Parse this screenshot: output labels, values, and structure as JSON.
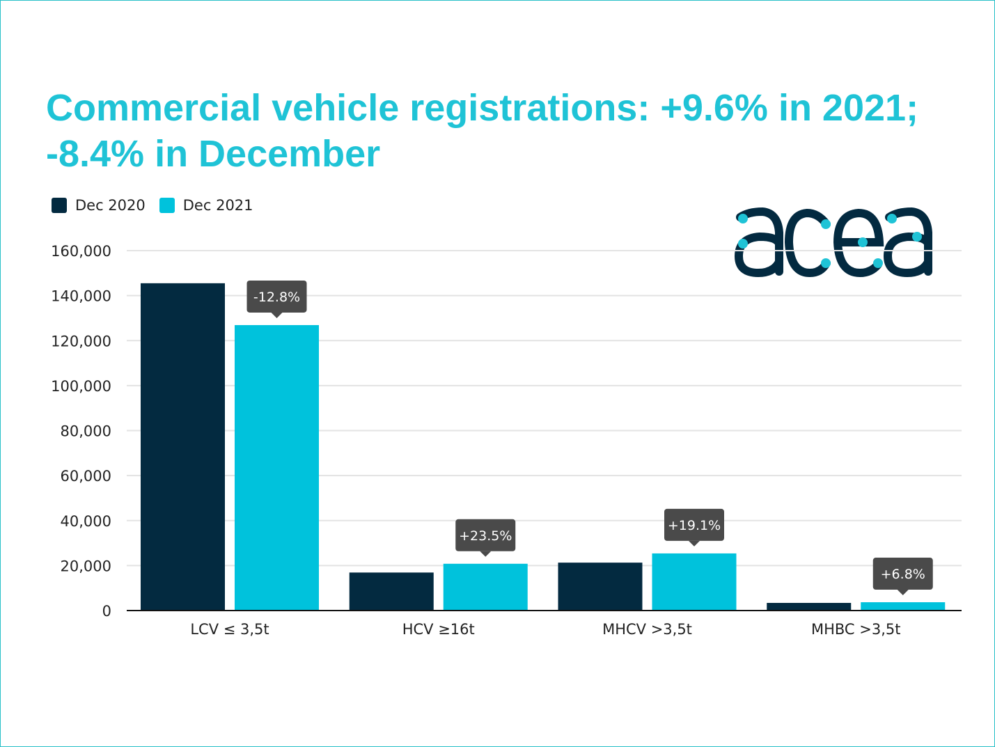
{
  "title": "Commercial vehicle registrations: +9.6% in 2021; -8.4% in December",
  "logo_text": "acea",
  "colors": {
    "accent": "#1fc3d6",
    "dark": "#032a40",
    "light": "#00c2dc",
    "annotation_bg": "#4a4a4a",
    "grid": "#e3e3e3"
  },
  "chart_data": {
    "type": "bar",
    "categories": [
      "LCV ≤ 3,5t",
      "HCV ≥16t",
      "MHCV >3,5t",
      "MHBC >3,5t"
    ],
    "series": [
      {
        "name": "Dec 2020",
        "color": "#032a40",
        "values": [
          145500,
          16900,
          21300,
          3400
        ]
      },
      {
        "name": "Dec 2021",
        "color": "#00c2dc",
        "values": [
          126900,
          20800,
          25400,
          3700
        ]
      }
    ],
    "annotations": [
      "-12.8%",
      "+23.5%",
      "+19.1%",
      "+6.8%"
    ],
    "ylim": [
      0,
      160000
    ],
    "yticks": [
      "0",
      "20,000",
      "40,000",
      "60,000",
      "80,000",
      "100,000",
      "120,000",
      "140,000",
      "160,000"
    ],
    "ytick_values": [
      0,
      20000,
      40000,
      60000,
      80000,
      100000,
      120000,
      140000,
      160000
    ],
    "grid": true,
    "legend_position": "top-left",
    "xlabel": "",
    "ylabel": ""
  }
}
